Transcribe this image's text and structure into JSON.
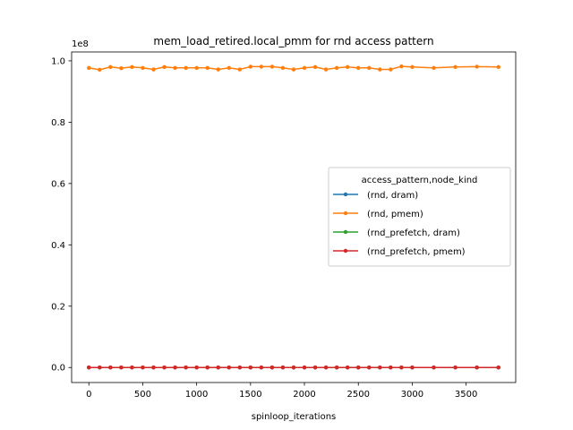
{
  "chart_data": {
    "type": "line",
    "title": "mem_load_retired.local_pmm for rnd access pattern",
    "xlabel": "spinloop_iterations",
    "ylabel": "",
    "y_offset_label": "1e8",
    "xlim": [
      -160,
      3960
    ],
    "ylim": [
      -4900000,
      102900000
    ],
    "x_ticks": [
      0,
      500,
      1000,
      1500,
      2000,
      2500,
      3000,
      3500
    ],
    "x_tick_labels": [
      "0",
      "500",
      "1000",
      "1500",
      "2000",
      "2500",
      "3000",
      "3500"
    ],
    "y_ticks": [
      0,
      20000000,
      40000000,
      60000000,
      80000000,
      100000000
    ],
    "y_tick_labels": [
      "0.0",
      "0.2",
      "0.4",
      "0.6",
      "0.8",
      "1.0"
    ],
    "grid": false,
    "legend": {
      "title": "access_pattern,node_kind",
      "placement": "center-right",
      "entries": [
        "(rnd, dram)",
        "(rnd, pmem)",
        "(rnd_prefetch, dram)",
        "(rnd_prefetch, pmem)"
      ]
    },
    "x": [
      0,
      100,
      200,
      300,
      400,
      500,
      600,
      700,
      800,
      900,
      1000,
      1100,
      1200,
      1300,
      1400,
      1500,
      1600,
      1700,
      1800,
      1900,
      2000,
      2100,
      2200,
      2300,
      2400,
      2500,
      2600,
      2700,
      2800,
      2900,
      3000,
      3200,
      3400,
      3600,
      3800
    ],
    "series": [
      {
        "name": "(rnd, dram)",
        "color": "#1f77b4",
        "values": [
          0,
          0,
          0,
          0,
          0,
          0,
          0,
          0,
          0,
          0,
          0,
          0,
          0,
          0,
          0,
          0,
          0,
          0,
          0,
          0,
          0,
          0,
          0,
          0,
          0,
          0,
          0,
          0,
          0,
          0,
          0,
          0,
          0,
          0,
          0
        ]
      },
      {
        "name": "(rnd, pmem)",
        "color": "#ff7f0e",
        "values": [
          97700000,
          97100000,
          98000000,
          97600000,
          98000000,
          97700000,
          97200000,
          98000000,
          97700000,
          97700000,
          97700000,
          97700000,
          97200000,
          97700000,
          97200000,
          98100000,
          98100000,
          98100000,
          97700000,
          97200000,
          97700000,
          98000000,
          97200000,
          97700000,
          98000000,
          97700000,
          97700000,
          97200000,
          97200000,
          98200000,
          98000000,
          97700000,
          98000000,
          98100000,
          98000000
        ]
      },
      {
        "name": "(rnd_prefetch, dram)",
        "color": "#2ca02c",
        "values": [
          0,
          0,
          0,
          0,
          0,
          0,
          0,
          0,
          0,
          0,
          0,
          0,
          0,
          0,
          0,
          0,
          0,
          0,
          0,
          0,
          0,
          0,
          0,
          0,
          0,
          0,
          0,
          0,
          0,
          0,
          0,
          0,
          0,
          0,
          0
        ]
      },
      {
        "name": "(rnd_prefetch, pmem)",
        "color": "#d62728",
        "values": [
          0,
          0,
          0,
          0,
          0,
          0,
          0,
          0,
          0,
          0,
          0,
          0,
          0,
          0,
          0,
          0,
          0,
          0,
          0,
          0,
          0,
          0,
          0,
          0,
          0,
          0,
          0,
          0,
          0,
          0,
          0,
          0,
          0,
          0,
          0
        ]
      }
    ]
  }
}
